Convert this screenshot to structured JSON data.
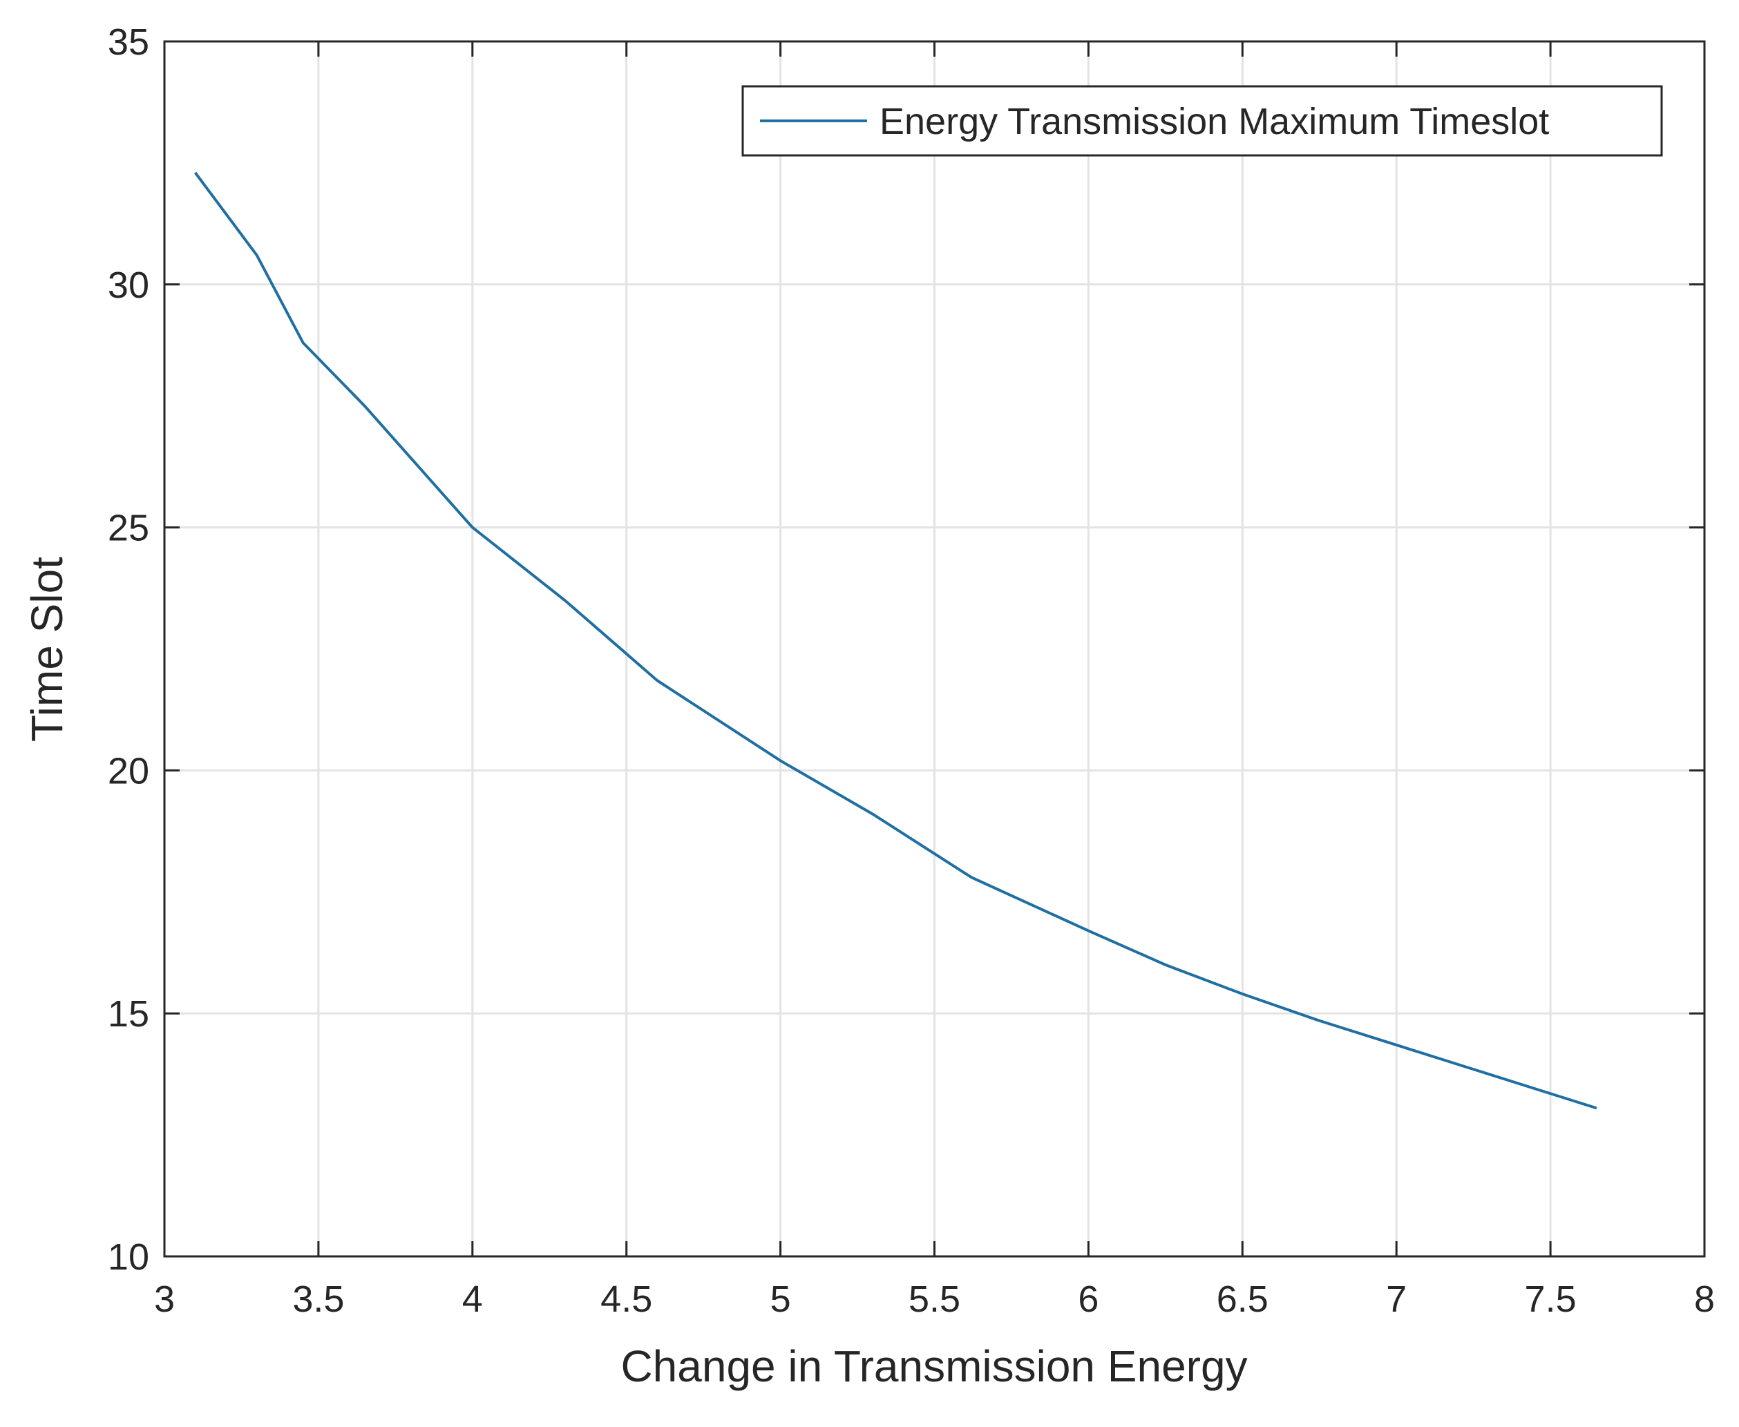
{
  "chart_data": {
    "type": "line",
    "xlabel": "Change in Transmission Energy",
    "ylabel": "Time Slot",
    "x": [
      3.1,
      3.3,
      3.45,
      3.65,
      4.0,
      4.3,
      4.6,
      5.0,
      5.3,
      5.62,
      6.0,
      6.25,
      6.5,
      6.75,
      7.0,
      7.25,
      7.65
    ],
    "series": [
      {
        "name": "Energy Transmission Maximum Timeslot",
        "color": "#1f6fa3",
        "values": [
          32.3,
          30.6,
          28.8,
          27.5,
          25.0,
          23.5,
          21.85,
          20.2,
          19.1,
          17.8,
          16.7,
          16.0,
          15.4,
          14.85,
          14.35,
          13.85,
          13.05
        ]
      }
    ],
    "xlim": [
      3,
      8
    ],
    "xticks": [
      3,
      3.5,
      4,
      4.5,
      5,
      5.5,
      6,
      6.5,
      7,
      7.5,
      8
    ],
    "ylim": [
      10,
      35
    ],
    "yticks": [
      10,
      15,
      20,
      25,
      30,
      35
    ],
    "grid": true,
    "legend": "top-right"
  }
}
